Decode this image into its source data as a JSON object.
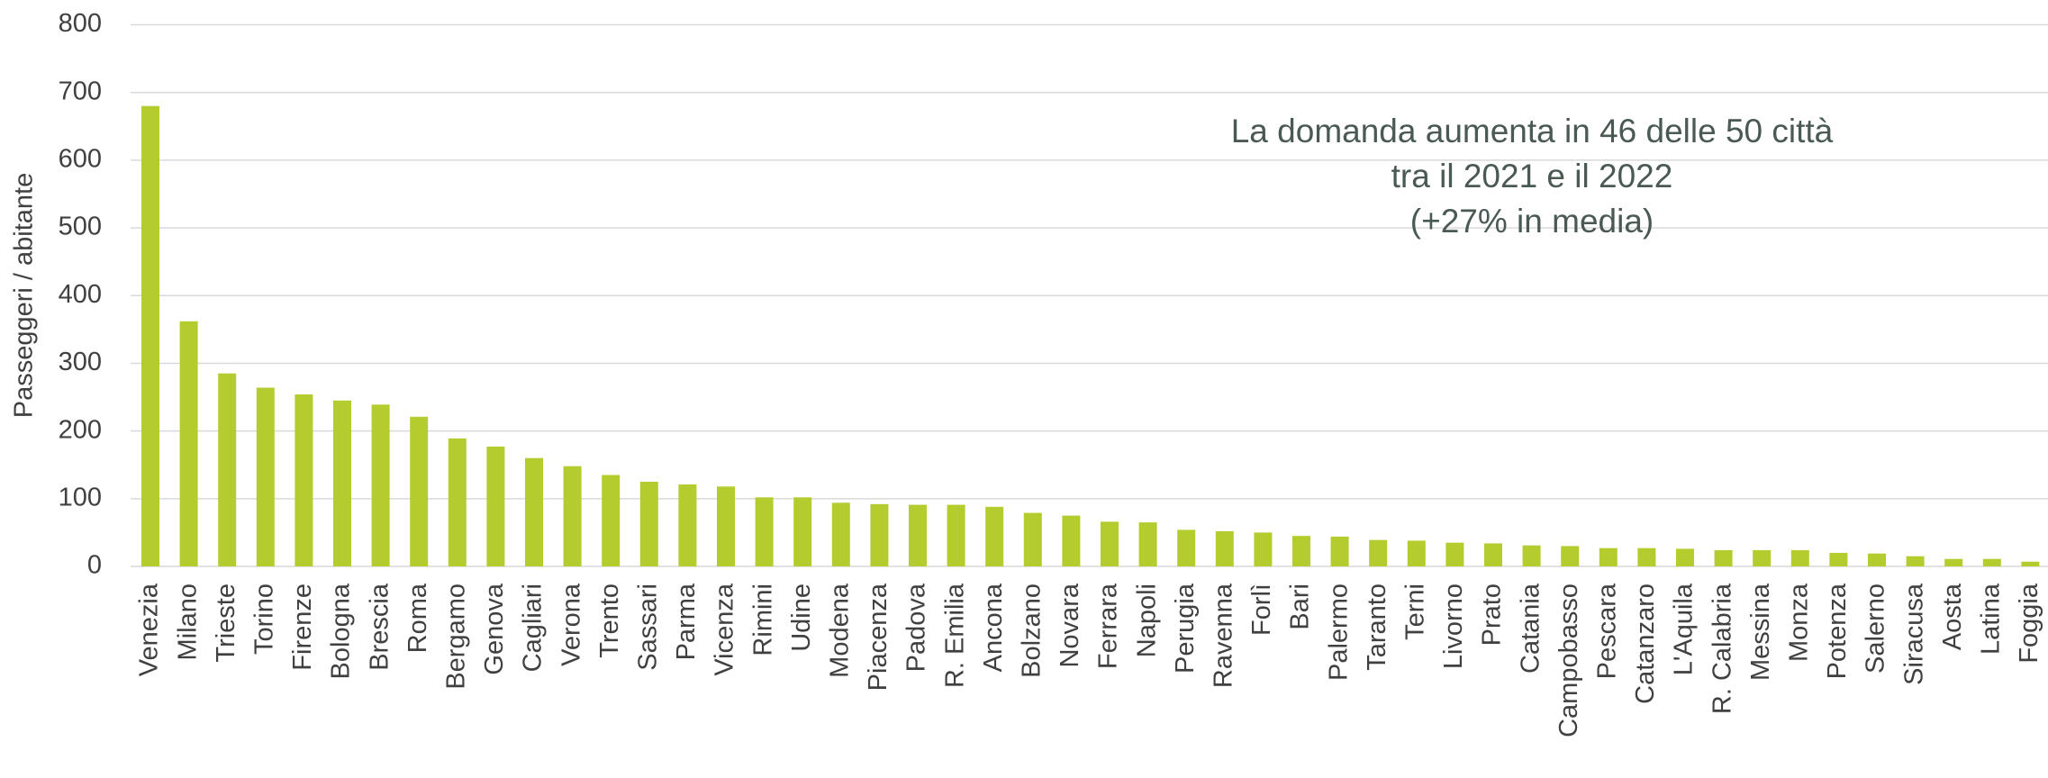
{
  "chart_data": {
    "type": "bar",
    "y_axis_label": "Passeggeri / abitante",
    "annotation": [
      "La domanda aumenta in 46 delle 50 città",
      "tra il 2021 e il 2022",
      "(+27% in media)"
    ],
    "categories": [
      "Venezia",
      "Milano",
      "Trieste",
      "Torino",
      "Firenze",
      "Bologna",
      "Brescia",
      "Roma",
      "Bergamo",
      "Genova",
      "Cagliari",
      "Verona",
      "Trento",
      "Sassari",
      "Parma",
      "Vicenza",
      "Rimini",
      "Udine",
      "Modena",
      "Piacenza",
      "Padova",
      "R. Emilia",
      "Ancona",
      "Bolzano",
      "Novara",
      "Ferrara",
      "Napoli",
      "Perugia",
      "Ravenna",
      "Forlì",
      "Bari",
      "Palermo",
      "Taranto",
      "Terni",
      "Livorno",
      "Prato",
      "Catania",
      "Campobasso",
      "Pescara",
      "Catanzaro",
      "L'Aquila",
      "R. Calabria",
      "Messina",
      "Monza",
      "Potenza",
      "Salerno",
      "Siracusa",
      "Aosta",
      "Latina",
      "Foggia"
    ],
    "values": [
      680,
      362,
      285,
      264,
      254,
      245,
      239,
      221,
      189,
      177,
      160,
      148,
      135,
      125,
      121,
      118,
      102,
      102,
      94,
      92,
      91,
      91,
      88,
      79,
      75,
      66,
      65,
      54,
      52,
      50,
      45,
      44,
      39,
      38,
      35,
      34,
      31,
      30,
      27,
      27,
      26,
      24,
      24,
      24,
      20,
      19,
      15,
      11,
      11,
      7
    ],
    "color": "#b5cc2e",
    "ylim": [
      0,
      800
    ],
    "yticks": [
      0,
      100,
      200,
      300,
      400,
      500,
      600,
      700,
      800
    ],
    "grid": true
  }
}
